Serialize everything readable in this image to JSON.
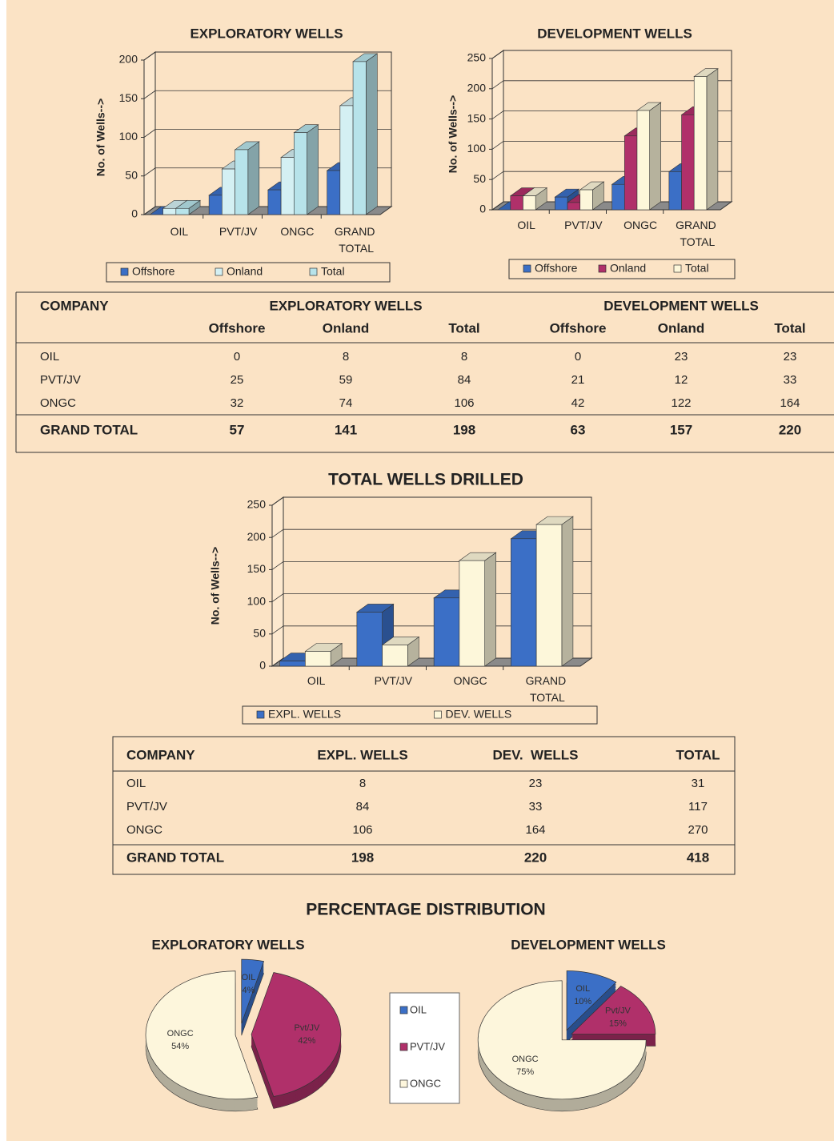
{
  "chart_data": [
    {
      "type": "bar",
      "title": "EXPLORATORY WELLS",
      "ylabel": "No. of Wells-->",
      "categories": [
        "OIL",
        "PVT/JV",
        "ONGC",
        "GRAND TOTAL"
      ],
      "series": [
        {
          "name": "Offshore",
          "color": "#3b6fc6",
          "values": [
            0,
            25,
            32,
            57
          ]
        },
        {
          "name": "Onland",
          "color": "#d4f0f3",
          "values": [
            8,
            59,
            74,
            141
          ]
        },
        {
          "name": "Total",
          "color": "#b7e3ea",
          "values": [
            8,
            84,
            106,
            198
          ]
        }
      ],
      "ylim": [
        0,
        200
      ],
      "yticks": [
        0,
        50,
        100,
        150,
        200
      ],
      "grid": true,
      "legend": "bottom"
    },
    {
      "type": "bar",
      "title": "DEVELOPMENT WELLS",
      "ylabel": "No. of Wells-->",
      "categories": [
        "OIL",
        "PVT/JV",
        "ONGC",
        "GRAND TOTAL"
      ],
      "series": [
        {
          "name": "Offshore",
          "color": "#3b6fc6",
          "values": [
            0,
            21,
            42,
            63
          ]
        },
        {
          "name": "Onland",
          "color": "#b0306a",
          "values": [
            23,
            12,
            122,
            157
          ]
        },
        {
          "name": "Total",
          "color": "#fdf7da",
          "values": [
            23,
            33,
            164,
            220
          ]
        }
      ],
      "ylim": [
        0,
        250
      ],
      "yticks": [
        0,
        50,
        100,
        150,
        200,
        250
      ],
      "grid": true,
      "legend": "bottom"
    },
    {
      "type": "bar",
      "title": "TOTAL WELLS DRILLED",
      "ylabel": "No. of Wells-->",
      "categories": [
        "OIL",
        "PVT/JV",
        "ONGC",
        "GRAND TOTAL"
      ],
      "series": [
        {
          "name": "EXPL. WELLS",
          "color": "#3b6fc6",
          "values": [
            8,
            84,
            106,
            198
          ]
        },
        {
          "name": "DEV. WELLS",
          "color": "#fdf7da",
          "values": [
            23,
            33,
            164,
            220
          ]
        }
      ],
      "ylim": [
        0,
        250
      ],
      "yticks": [
        0,
        50,
        100,
        150,
        200,
        250
      ],
      "grid": true,
      "legend": "bottom"
    },
    {
      "type": "pie",
      "title": "EXPLORATORY WELLS",
      "labels": [
        "OIL",
        "Pvt/JV",
        "ONGC"
      ],
      "values": [
        4,
        42,
        54
      ],
      "value_labels": [
        "4%",
        "42%",
        "54%"
      ],
      "colors": [
        "#3b6fc6",
        "#b0306a",
        "#fdf6dc"
      ]
    },
    {
      "type": "pie",
      "title": "DEVELOPMENT WELLS",
      "labels": [
        "OIL",
        "Pvt/JV",
        "ONGC"
      ],
      "values": [
        10,
        15,
        75
      ],
      "value_labels": [
        "10%",
        "15%",
        "75%"
      ],
      "colors": [
        "#3b6fc6",
        "#b0306a",
        "#fdf6dc"
      ]
    }
  ],
  "pie_section_title": "PERCENTAGE DISTRIBUTION",
  "pie_legend": [
    {
      "name": "OIL",
      "color": "#3b6fc6"
    },
    {
      "name": "PVT/JV",
      "color": "#b0306a"
    },
    {
      "name": "ONGC",
      "color": "#fdf6dc"
    }
  ],
  "table_1": {
    "header": "COMPANY",
    "groups": [
      "EXPLORATORY WELLS",
      "DEVELOPMENT WELLS"
    ],
    "columns": [
      "Offshore",
      "Onland",
      "Total",
      "Offshore",
      "Onland",
      "Total"
    ],
    "rows": [
      [
        "OIL",
        0,
        8,
        8,
        0,
        23,
        23
      ],
      [
        "PVT/JV",
        25,
        59,
        84,
        21,
        12,
        33
      ],
      [
        "ONGC",
        32,
        74,
        106,
        42,
        122,
        164
      ]
    ],
    "total_row": [
      "GRAND TOTAL",
      57,
      141,
      198,
      63,
      157,
      220
    ]
  },
  "table_2": {
    "columns": [
      "COMPANY",
      "EXPL. WELLS",
      "DEV.  WELLS",
      "TOTAL"
    ],
    "rows": [
      [
        "OIL",
        8,
        23,
        31
      ],
      [
        "PVT/JV",
        84,
        33,
        117
      ],
      [
        "ONGC",
        106,
        164,
        270
      ]
    ],
    "total_row": [
      "GRAND TOTAL",
      198,
      220,
      418
    ]
  }
}
